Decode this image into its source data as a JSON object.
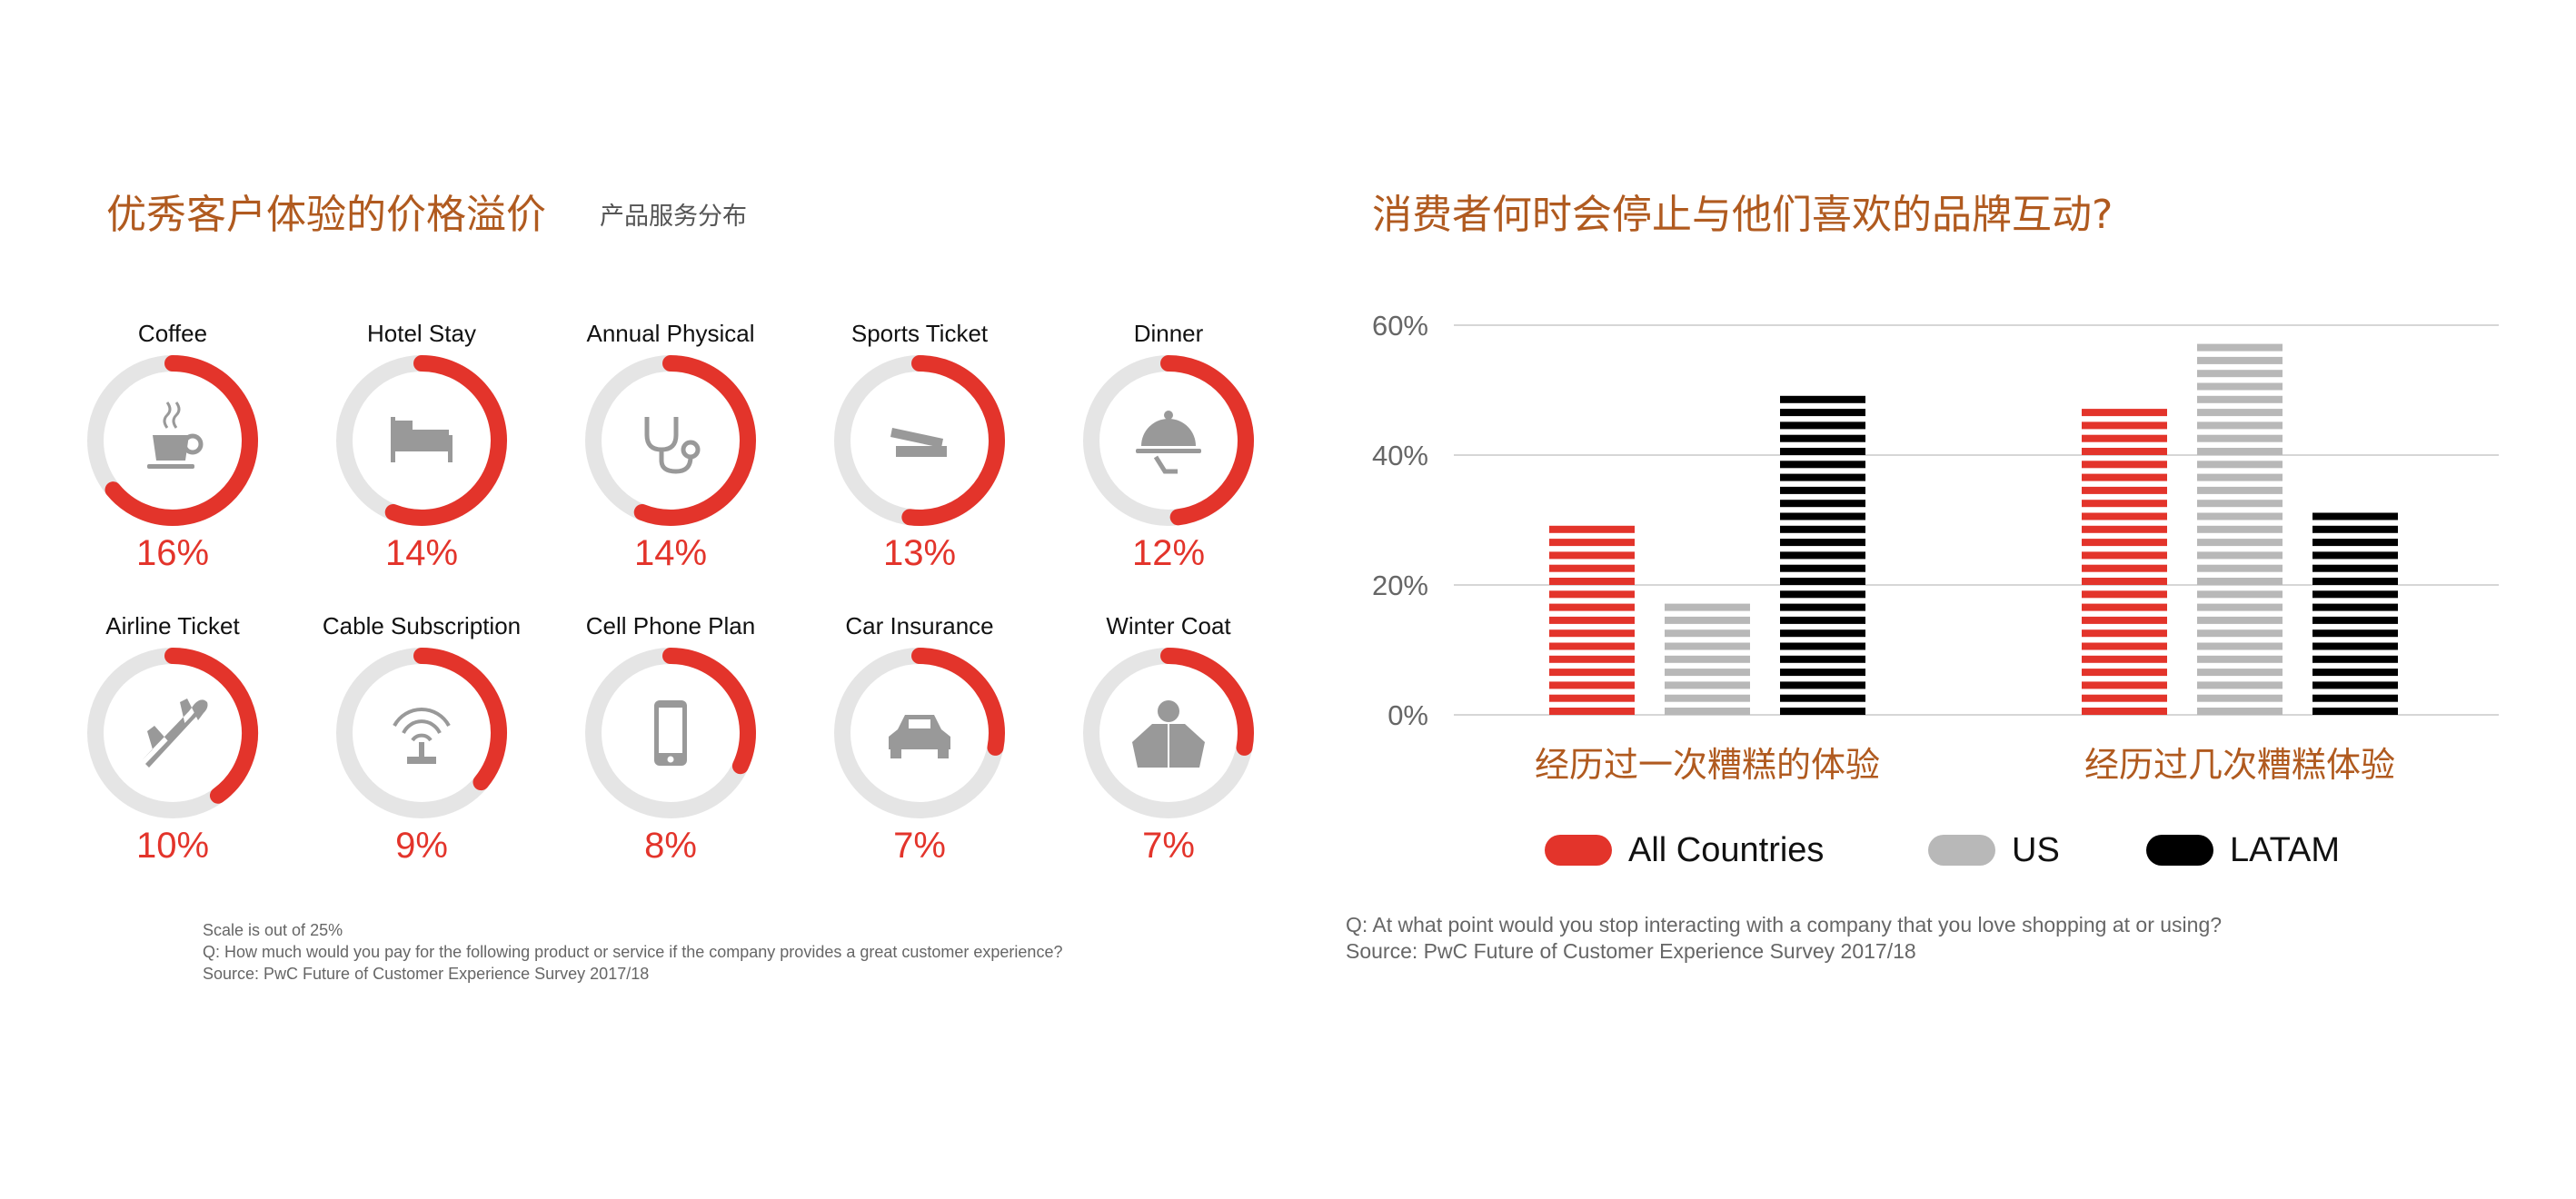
{
  "left": {
    "title": "优秀客户体验的价格溢价",
    "subtitle": "产品服务分布",
    "notes": [
      "Scale is out of 25%",
      "Q: How much would you pay for the following product or service if the company provides a great customer experience?",
      "Source: PwC Future of Customer Experience Survey 2017/18"
    ]
  },
  "right": {
    "title": "消费者何时会停止与他们喜欢的品牌互动?",
    "notes": [
      "Q: At what point would you stop interacting with a company that you love shopping at or using?",
      "Source: PwC Future of Customer Experience Survey 2017/18"
    ]
  },
  "colors": {
    "accent": "#e3342b",
    "title": "#b05a1f",
    "ring_track": "#e5e5e5",
    "icon": "#999999",
    "us": "#b8b8b8",
    "latam": "#000000"
  },
  "chart_data": [
    {
      "type": "donut",
      "scale_max": 25,
      "items": [
        {
          "label": "Coffee",
          "value": 16,
          "display": "16%",
          "icon": "coffee-cup-icon"
        },
        {
          "label": "Hotel Stay",
          "value": 14,
          "display": "14%",
          "icon": "bed-icon"
        },
        {
          "label": "Annual Physical",
          "value": 14,
          "display": "14%",
          "icon": "stethoscope-icon"
        },
        {
          "label": "Sports Ticket",
          "value": 13,
          "display": "13%",
          "icon": "ticket-icon"
        },
        {
          "label": "Dinner",
          "value": 12,
          "display": "12%",
          "icon": "cloche-icon"
        },
        {
          "label": "Airline Ticket",
          "value": 10,
          "display": "10%",
          "icon": "airplane-icon"
        },
        {
          "label": "Cable Subscription",
          "value": 9,
          "display": "9%",
          "icon": "antenna-icon"
        },
        {
          "label": "Cell Phone Plan",
          "value": 8,
          "display": "8%",
          "icon": "phone-icon"
        },
        {
          "label": "Car Insurance",
          "value": 7,
          "display": "7%",
          "icon": "car-icon"
        },
        {
          "label": "Winter Coat",
          "value": 7,
          "display": "7%",
          "icon": "coat-icon"
        }
      ]
    },
    {
      "type": "bar",
      "categories": [
        "经历过一次糟糕的体验",
        "经历过几次糟糕体验"
      ],
      "series": [
        {
          "name": "All Countries",
          "values": [
            30,
            48
          ],
          "color": "#e3342b"
        },
        {
          "name": "US",
          "values": [
            18,
            58
          ],
          "color": "#b8b8b8"
        },
        {
          "name": "LATAM",
          "values": [
            50,
            32
          ],
          "color": "#000000"
        }
      ],
      "ylim": [
        0,
        60
      ],
      "yticks": [
        "0%",
        "20%",
        "40%",
        "60%"
      ],
      "ytick_values": [
        0,
        20,
        40,
        60
      ],
      "grid": true,
      "legend": "bottom"
    }
  ]
}
